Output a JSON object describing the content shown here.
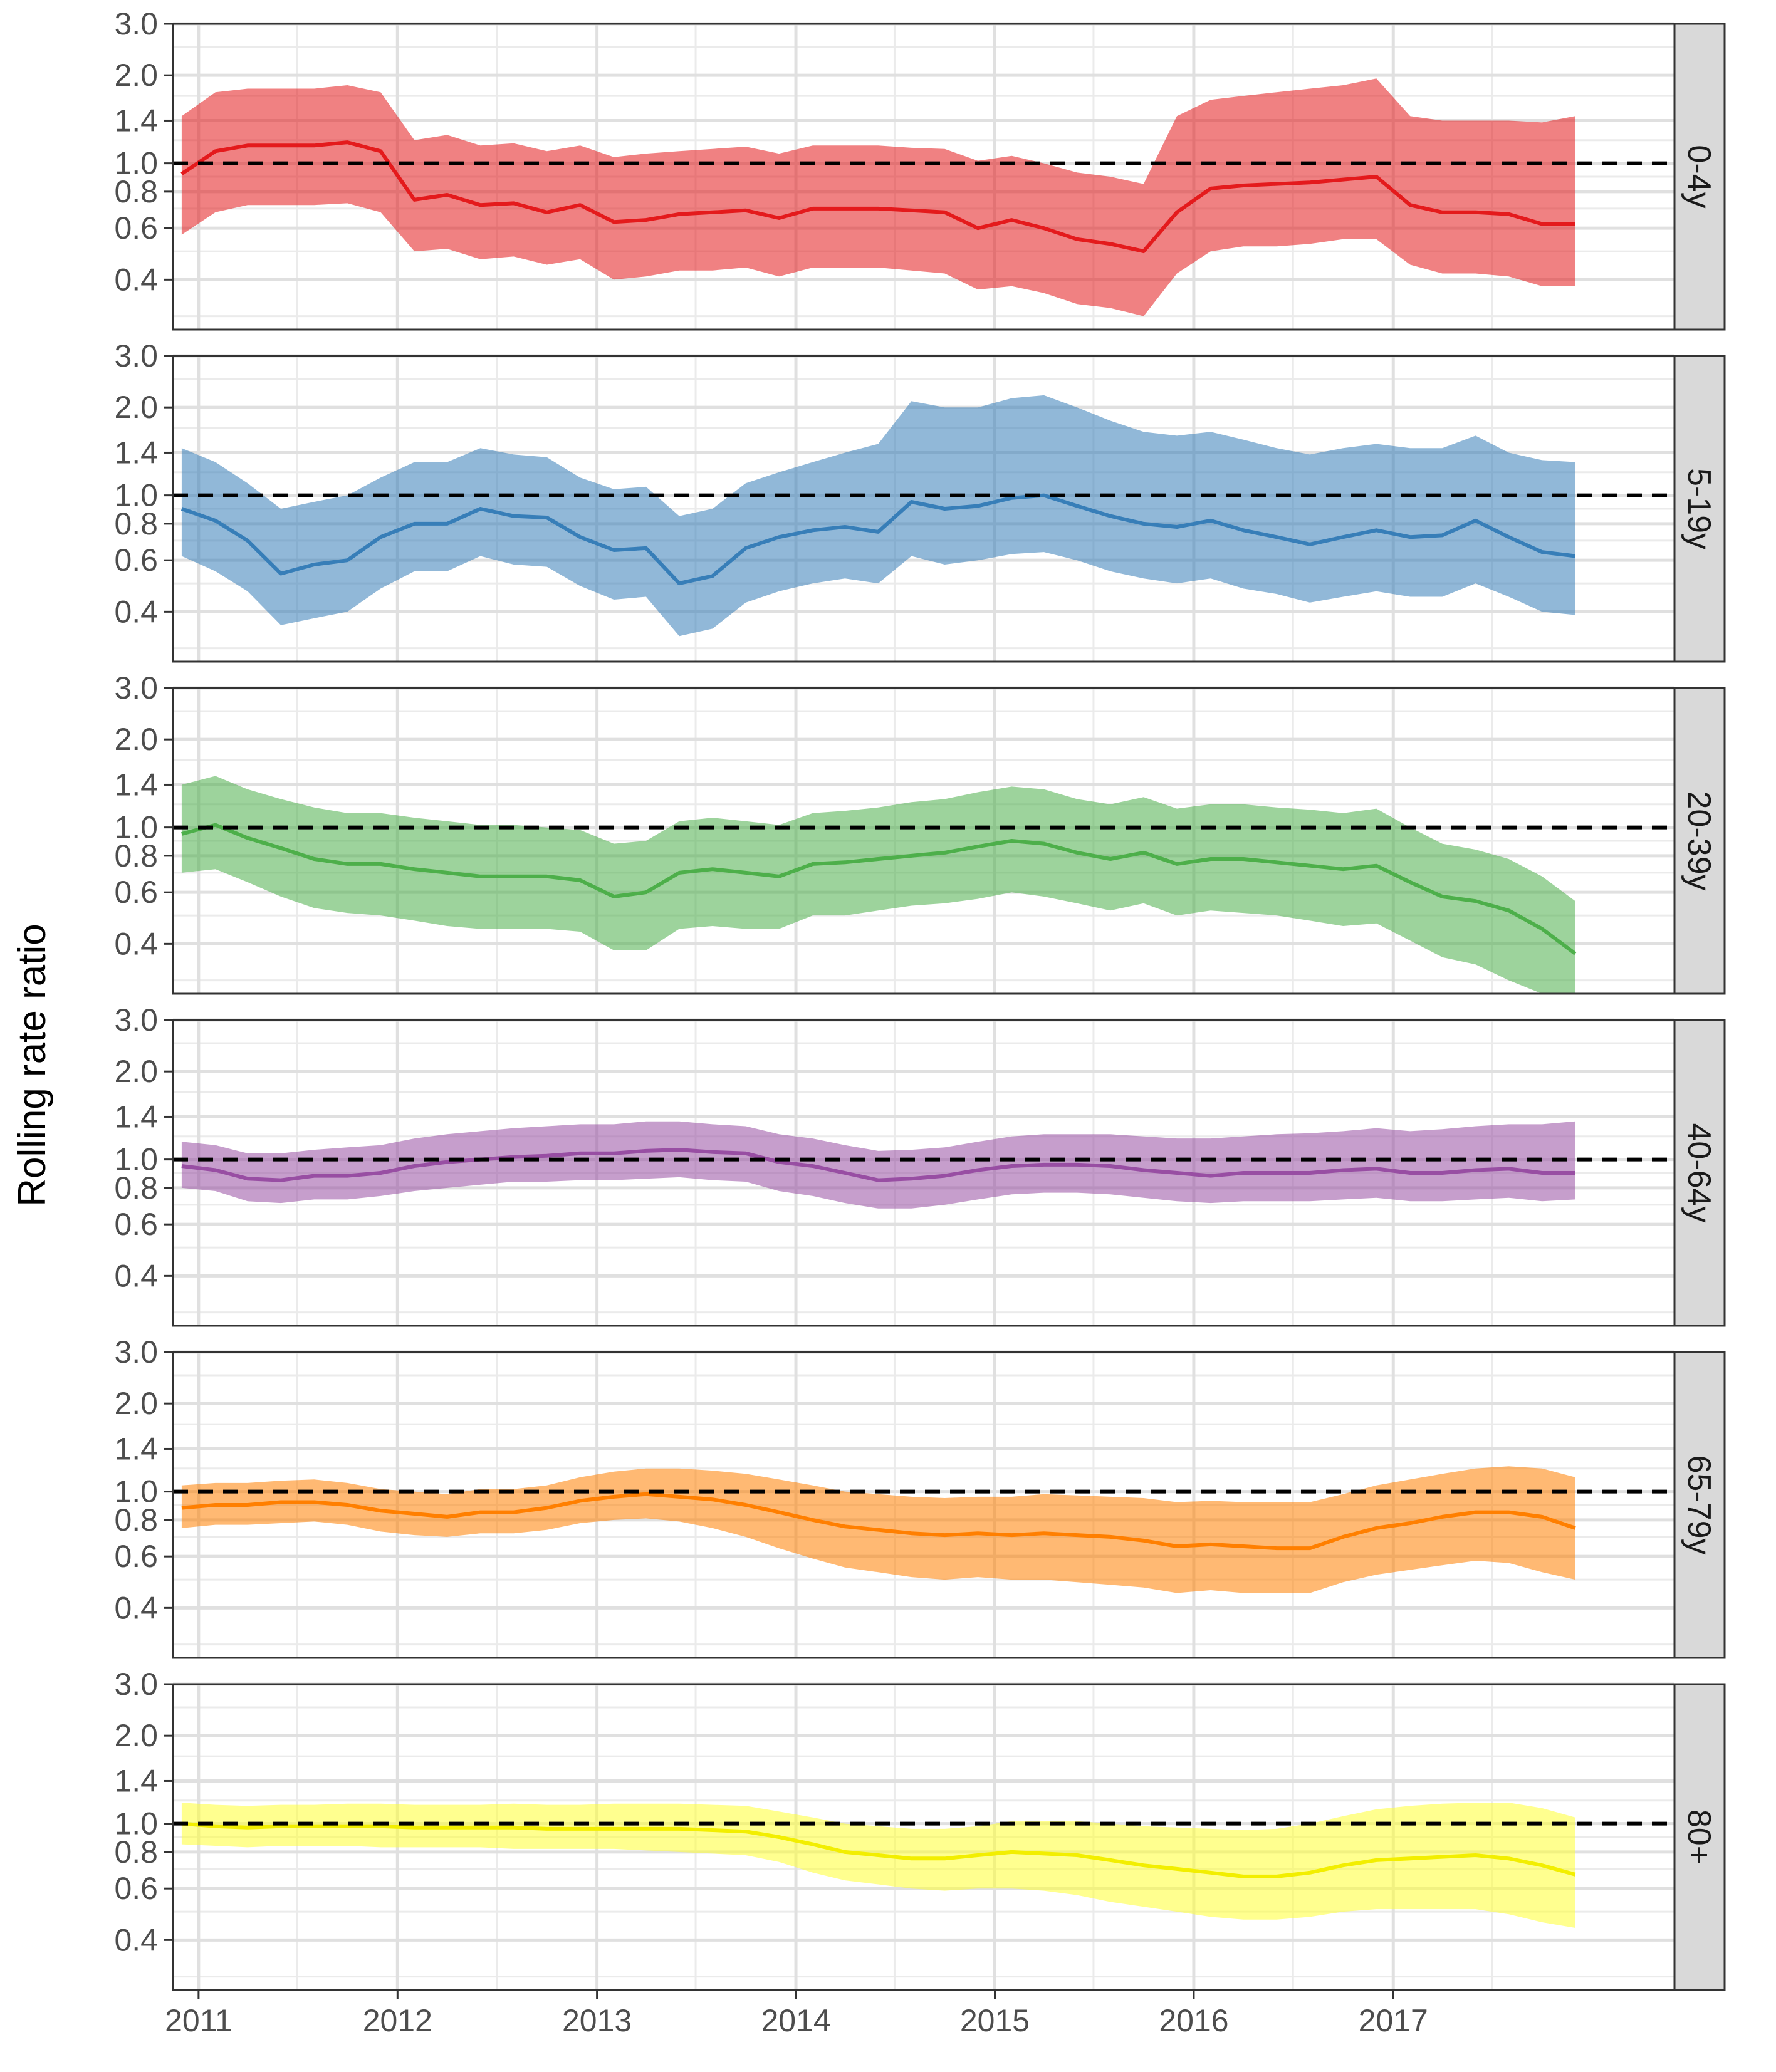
{
  "chart_data": {
    "type": "line",
    "facet_layout": "vertical",
    "y_scale": "log",
    "ylabel": "Rolling rate ratio",
    "xlabel": "",
    "xlim": [
      "2010-11-15",
      "2018-06-01"
    ],
    "ylim": [
      0.27,
      3.0
    ],
    "x_ticks": [
      {
        "date": "2011-01-01",
        "label": "2011"
      },
      {
        "date": "2012-01-01",
        "label": "2012"
      },
      {
        "date": "2013-01-01",
        "label": "2013"
      },
      {
        "date": "2014-01-01",
        "label": "2014"
      },
      {
        "date": "2015-01-01",
        "label": "2015"
      },
      {
        "date": "2016-01-01",
        "label": "2016"
      },
      {
        "date": "2017-01-01",
        "label": "2017"
      }
    ],
    "y_ticks": [
      {
        "value": 0.4,
        "label": "0.4"
      },
      {
        "value": 0.6,
        "label": "0.6"
      },
      {
        "value": 0.8,
        "label": "0.8"
      },
      {
        "value": 1.0,
        "label": "1.0"
      },
      {
        "value": 1.4,
        "label": "1.4"
      },
      {
        "value": 2.0,
        "label": "2.0"
      },
      {
        "value": 3.0,
        "label": "3.0"
      }
    ],
    "reference_line": {
      "y": 1.0,
      "style": "dashed",
      "color": "#000000"
    },
    "grid": true,
    "series_dates": [
      "2010-12-01",
      "2011-02-01",
      "2011-04-01",
      "2011-06-01",
      "2011-08-01",
      "2011-10-01",
      "2011-12-01",
      "2012-02-01",
      "2012-04-01",
      "2012-06-01",
      "2012-08-01",
      "2012-10-01",
      "2012-12-01",
      "2013-02-01",
      "2013-04-01",
      "2013-06-01",
      "2013-08-01",
      "2013-10-01",
      "2013-12-01",
      "2014-02-01",
      "2014-04-01",
      "2014-06-01",
      "2014-08-01",
      "2014-10-01",
      "2014-12-01",
      "2015-02-01",
      "2015-04-01",
      "2015-06-01",
      "2015-08-01",
      "2015-10-01",
      "2015-12-01",
      "2016-02-01",
      "2016-04-01",
      "2016-06-01",
      "2016-08-01",
      "2016-10-01",
      "2016-12-01",
      "2017-02-01",
      "2017-04-01",
      "2017-06-01",
      "2017-08-01",
      "2017-10-01",
      "2017-12-01"
    ],
    "series": [
      {
        "name": "0-4y",
        "color": "#e41a1c",
        "values": [
          0.92,
          1.1,
          1.15,
          1.15,
          1.15,
          1.18,
          1.1,
          0.75,
          0.78,
          0.72,
          0.73,
          0.68,
          0.72,
          0.63,
          0.64,
          0.67,
          0.68,
          0.69,
          0.65,
          0.7,
          0.7,
          0.7,
          0.69,
          0.68,
          0.6,
          0.64,
          0.6,
          0.55,
          0.53,
          0.5,
          0.68,
          0.82,
          0.84,
          0.85,
          0.86,
          0.88,
          0.9,
          0.72,
          0.68,
          0.68,
          0.67,
          0.62,
          0.62
        ],
        "lower": [
          0.57,
          0.68,
          0.72,
          0.72,
          0.72,
          0.73,
          0.68,
          0.5,
          0.51,
          0.47,
          0.48,
          0.45,
          0.47,
          0.4,
          0.41,
          0.43,
          0.43,
          0.44,
          0.41,
          0.44,
          0.44,
          0.44,
          0.43,
          0.42,
          0.37,
          0.38,
          0.36,
          0.33,
          0.32,
          0.3,
          0.42,
          0.5,
          0.52,
          0.52,
          0.53,
          0.55,
          0.55,
          0.45,
          0.42,
          0.42,
          0.41,
          0.38,
          0.38
        ],
        "upper": [
          1.45,
          1.75,
          1.8,
          1.8,
          1.8,
          1.85,
          1.75,
          1.2,
          1.25,
          1.15,
          1.17,
          1.1,
          1.15,
          1.05,
          1.08,
          1.1,
          1.12,
          1.14,
          1.08,
          1.15,
          1.15,
          1.15,
          1.13,
          1.12,
          1.02,
          1.06,
          1.0,
          0.93,
          0.9,
          0.85,
          1.45,
          1.65,
          1.7,
          1.75,
          1.8,
          1.85,
          1.95,
          1.45,
          1.4,
          1.4,
          1.4,
          1.38,
          1.45
        ]
      },
      {
        "name": "5-19y",
        "color": "#377eb8",
        "values": [
          0.9,
          0.82,
          0.7,
          0.54,
          0.58,
          0.6,
          0.72,
          0.8,
          0.8,
          0.9,
          0.85,
          0.84,
          0.72,
          0.65,
          0.66,
          0.5,
          0.53,
          0.66,
          0.72,
          0.76,
          0.78,
          0.75,
          0.95,
          0.9,
          0.92,
          0.98,
          1.0,
          0.92,
          0.85,
          0.8,
          0.78,
          0.82,
          0.76,
          0.72,
          0.68,
          0.72,
          0.76,
          0.72,
          0.73,
          0.82,
          0.72,
          0.64,
          0.62
        ],
        "lower": [
          0.62,
          0.55,
          0.47,
          0.36,
          0.38,
          0.4,
          0.48,
          0.55,
          0.55,
          0.62,
          0.58,
          0.57,
          0.49,
          0.44,
          0.45,
          0.33,
          0.35,
          0.43,
          0.47,
          0.5,
          0.52,
          0.5,
          0.62,
          0.58,
          0.6,
          0.63,
          0.64,
          0.6,
          0.55,
          0.52,
          0.5,
          0.52,
          0.48,
          0.46,
          0.43,
          0.45,
          0.47,
          0.45,
          0.45,
          0.5,
          0.45,
          0.4,
          0.39
        ],
        "upper": [
          1.45,
          1.3,
          1.1,
          0.9,
          0.95,
          1.0,
          1.15,
          1.3,
          1.3,
          1.45,
          1.38,
          1.35,
          1.15,
          1.05,
          1.07,
          0.85,
          0.9,
          1.1,
          1.2,
          1.3,
          1.4,
          1.5,
          2.1,
          2.0,
          2.0,
          2.15,
          2.2,
          2.0,
          1.8,
          1.65,
          1.6,
          1.65,
          1.55,
          1.45,
          1.38,
          1.45,
          1.5,
          1.45,
          1.45,
          1.6,
          1.4,
          1.32,
          1.3
        ]
      },
      {
        "name": "20-39y",
        "color": "#4daf4a",
        "values": [
          0.95,
          1.02,
          0.92,
          0.85,
          0.78,
          0.75,
          0.75,
          0.72,
          0.7,
          0.68,
          0.68,
          0.68,
          0.66,
          0.58,
          0.6,
          0.7,
          0.72,
          0.7,
          0.68,
          0.75,
          0.76,
          0.78,
          0.8,
          0.82,
          0.86,
          0.9,
          0.88,
          0.82,
          0.78,
          0.82,
          0.75,
          0.78,
          0.78,
          0.76,
          0.74,
          0.72,
          0.74,
          0.65,
          0.58,
          0.56,
          0.52,
          0.45,
          0.37
        ],
        "lower": [
          0.7,
          0.72,
          0.65,
          0.58,
          0.53,
          0.51,
          0.5,
          0.48,
          0.46,
          0.45,
          0.45,
          0.45,
          0.44,
          0.38,
          0.38,
          0.45,
          0.46,
          0.45,
          0.45,
          0.5,
          0.5,
          0.52,
          0.54,
          0.55,
          0.57,
          0.6,
          0.58,
          0.55,
          0.52,
          0.55,
          0.5,
          0.52,
          0.51,
          0.5,
          0.48,
          0.46,
          0.47,
          0.41,
          0.36,
          0.34,
          0.3,
          0.27,
          0.27
        ],
        "upper": [
          1.4,
          1.5,
          1.35,
          1.25,
          1.17,
          1.12,
          1.12,
          1.08,
          1.05,
          1.02,
          1.02,
          1.0,
          0.98,
          0.88,
          0.9,
          1.05,
          1.08,
          1.05,
          1.02,
          1.12,
          1.14,
          1.17,
          1.22,
          1.25,
          1.32,
          1.38,
          1.35,
          1.25,
          1.2,
          1.27,
          1.16,
          1.2,
          1.2,
          1.17,
          1.15,
          1.12,
          1.16,
          1.0,
          0.88,
          0.84,
          0.78,
          0.68,
          0.56
        ]
      },
      {
        "name": "40-64y",
        "color": "#984ea3",
        "values": [
          0.95,
          0.92,
          0.86,
          0.85,
          0.88,
          0.88,
          0.9,
          0.95,
          0.98,
          1.0,
          1.02,
          1.03,
          1.05,
          1.05,
          1.07,
          1.08,
          1.06,
          1.05,
          0.98,
          0.95,
          0.9,
          0.85,
          0.86,
          0.88,
          0.92,
          0.95,
          0.96,
          0.96,
          0.95,
          0.92,
          0.9,
          0.88,
          0.9,
          0.9,
          0.9,
          0.92,
          0.93,
          0.9,
          0.9,
          0.92,
          0.93,
          0.9,
          0.9
        ],
        "lower": [
          0.8,
          0.78,
          0.72,
          0.71,
          0.73,
          0.73,
          0.75,
          0.78,
          0.8,
          0.82,
          0.84,
          0.84,
          0.85,
          0.85,
          0.86,
          0.87,
          0.85,
          0.84,
          0.78,
          0.75,
          0.71,
          0.68,
          0.68,
          0.7,
          0.73,
          0.76,
          0.77,
          0.77,
          0.76,
          0.74,
          0.72,
          0.71,
          0.72,
          0.72,
          0.72,
          0.73,
          0.74,
          0.72,
          0.72,
          0.73,
          0.74,
          0.72,
          0.73
        ],
        "upper": [
          1.15,
          1.12,
          1.05,
          1.05,
          1.08,
          1.1,
          1.12,
          1.18,
          1.22,
          1.25,
          1.28,
          1.3,
          1.32,
          1.32,
          1.35,
          1.35,
          1.32,
          1.3,
          1.22,
          1.18,
          1.12,
          1.07,
          1.08,
          1.1,
          1.15,
          1.2,
          1.22,
          1.22,
          1.22,
          1.2,
          1.18,
          1.18,
          1.2,
          1.22,
          1.23,
          1.25,
          1.28,
          1.25,
          1.27,
          1.3,
          1.32,
          1.32,
          1.35
        ]
      },
      {
        "name": "65-79y",
        "color": "#ff7f00",
        "values": [
          0.88,
          0.9,
          0.9,
          0.92,
          0.92,
          0.9,
          0.86,
          0.84,
          0.82,
          0.85,
          0.85,
          0.88,
          0.93,
          0.96,
          0.98,
          0.96,
          0.94,
          0.9,
          0.85,
          0.8,
          0.76,
          0.74,
          0.72,
          0.71,
          0.72,
          0.71,
          0.72,
          0.71,
          0.7,
          0.68,
          0.65,
          0.66,
          0.65,
          0.64,
          0.64,
          0.7,
          0.75,
          0.78,
          0.82,
          0.85,
          0.85,
          0.82,
          0.75
        ],
        "lower": [
          0.75,
          0.77,
          0.77,
          0.78,
          0.79,
          0.77,
          0.73,
          0.71,
          0.7,
          0.72,
          0.72,
          0.74,
          0.78,
          0.8,
          0.81,
          0.79,
          0.75,
          0.7,
          0.64,
          0.59,
          0.55,
          0.53,
          0.51,
          0.5,
          0.51,
          0.5,
          0.5,
          0.49,
          0.48,
          0.47,
          0.45,
          0.46,
          0.45,
          0.45,
          0.45,
          0.49,
          0.52,
          0.54,
          0.56,
          0.58,
          0.57,
          0.53,
          0.5
        ],
        "upper": [
          1.05,
          1.07,
          1.07,
          1.09,
          1.1,
          1.07,
          1.02,
          1.0,
          0.98,
          1.02,
          1.02,
          1.05,
          1.12,
          1.17,
          1.2,
          1.2,
          1.18,
          1.15,
          1.1,
          1.05,
          1.0,
          0.98,
          0.96,
          0.95,
          0.96,
          0.96,
          0.98,
          0.97,
          0.96,
          0.95,
          0.92,
          0.93,
          0.92,
          0.92,
          0.92,
          0.98,
          1.05,
          1.1,
          1.15,
          1.2,
          1.22,
          1.2,
          1.12
        ]
      },
      {
        "name": "80+",
        "color": "#ffff33",
        "stroke": "#f2ee00",
        "values": [
          1.0,
          0.98,
          0.97,
          0.98,
          0.98,
          0.98,
          0.98,
          0.97,
          0.97,
          0.97,
          0.97,
          0.96,
          0.96,
          0.96,
          0.96,
          0.96,
          0.95,
          0.94,
          0.9,
          0.85,
          0.8,
          0.78,
          0.76,
          0.76,
          0.78,
          0.8,
          0.79,
          0.78,
          0.75,
          0.72,
          0.7,
          0.68,
          0.66,
          0.66,
          0.68,
          0.72,
          0.75,
          0.76,
          0.77,
          0.78,
          0.76,
          0.72,
          0.67
        ],
        "lower": [
          0.85,
          0.84,
          0.83,
          0.84,
          0.84,
          0.84,
          0.83,
          0.83,
          0.83,
          0.83,
          0.82,
          0.82,
          0.82,
          0.82,
          0.81,
          0.8,
          0.79,
          0.78,
          0.74,
          0.68,
          0.64,
          0.62,
          0.6,
          0.59,
          0.6,
          0.6,
          0.59,
          0.57,
          0.54,
          0.52,
          0.5,
          0.48,
          0.47,
          0.47,
          0.48,
          0.5,
          0.51,
          0.51,
          0.51,
          0.51,
          0.49,
          0.46,
          0.44
        ],
        "upper": [
          1.18,
          1.16,
          1.15,
          1.16,
          1.16,
          1.17,
          1.17,
          1.16,
          1.16,
          1.16,
          1.17,
          1.16,
          1.16,
          1.17,
          1.17,
          1.17,
          1.16,
          1.15,
          1.1,
          1.05,
          1.0,
          0.98,
          0.96,
          0.96,
          0.98,
          1.02,
          1.02,
          1.02,
          1.0,
          0.98,
          0.97,
          0.96,
          0.95,
          0.96,
          1.0,
          1.06,
          1.12,
          1.15,
          1.17,
          1.18,
          1.18,
          1.13,
          1.05
        ]
      }
    ]
  }
}
